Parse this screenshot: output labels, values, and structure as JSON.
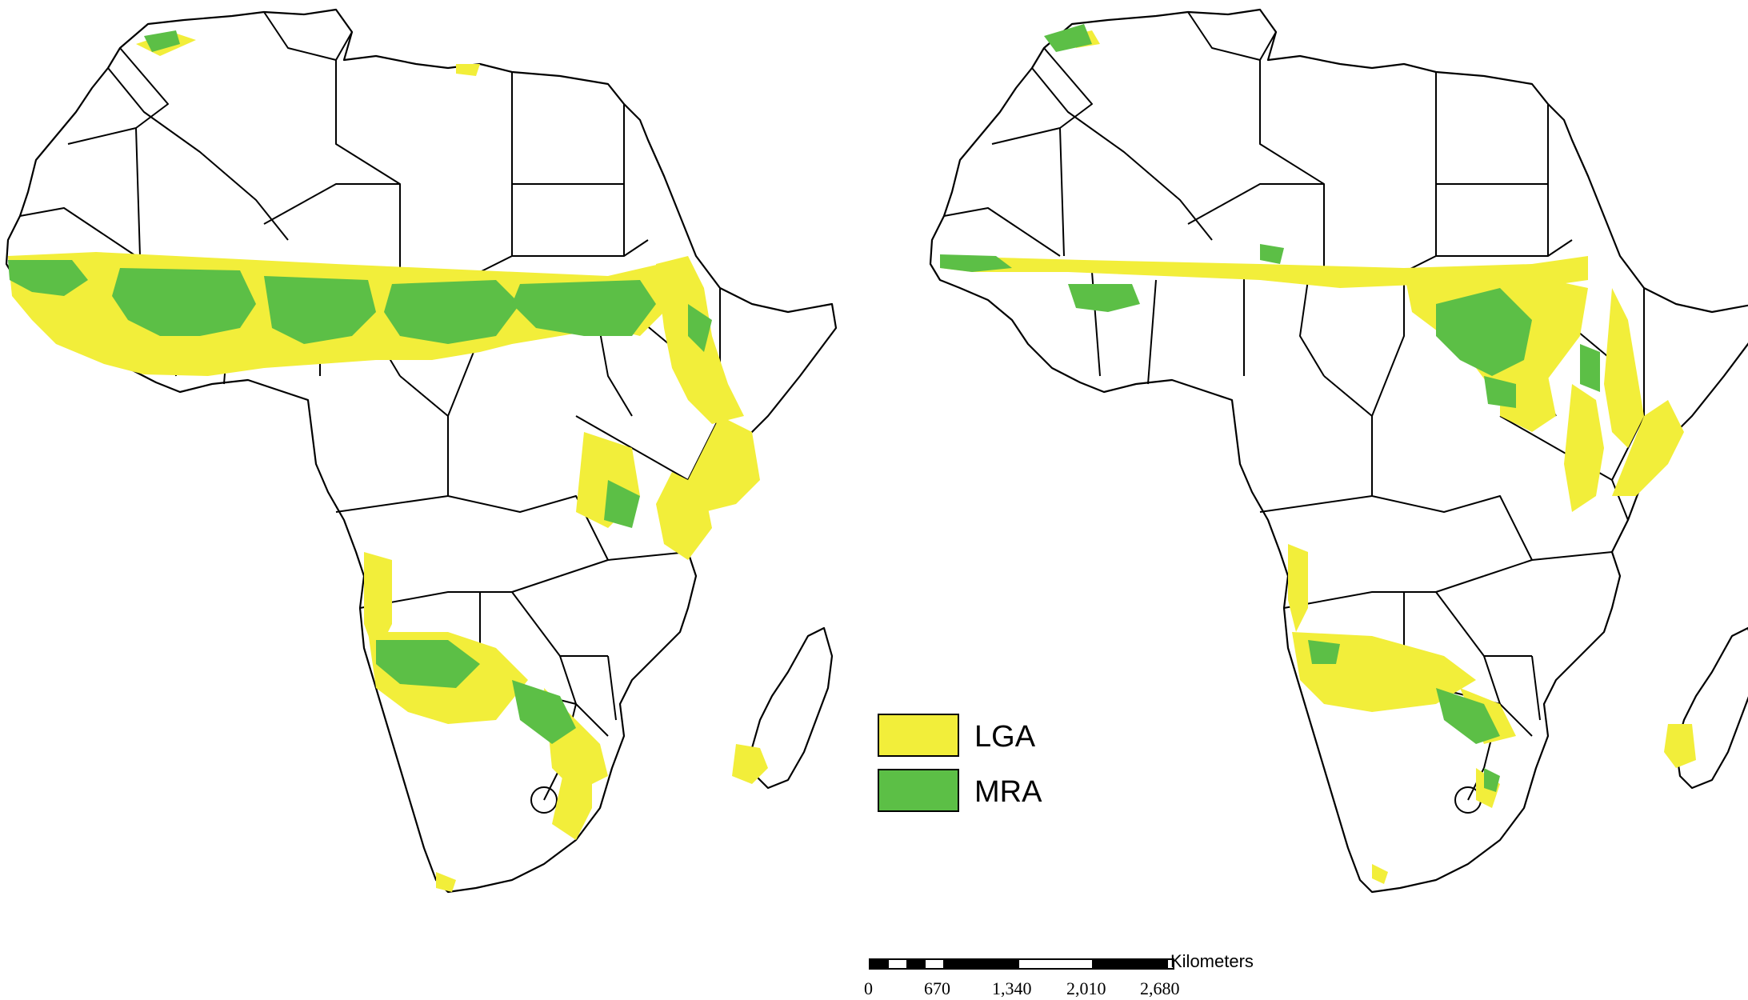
{
  "colors": {
    "lga": "#f2ee3a",
    "mra": "#5cbf46",
    "border": "#000000",
    "land": "#ffffff"
  },
  "maps": [
    {
      "name": "left-map"
    },
    {
      "name": "right-map"
    }
  ],
  "legend": {
    "items": [
      {
        "label": "LGA",
        "color": "#f2ee3a"
      },
      {
        "label": "MRA",
        "color": "#5cbf46"
      }
    ]
  },
  "scale_bar": {
    "unit": "Kilometers",
    "ticks": [
      "0",
      "670",
      "1,340",
      "2,010",
      "2,680"
    ]
  }
}
